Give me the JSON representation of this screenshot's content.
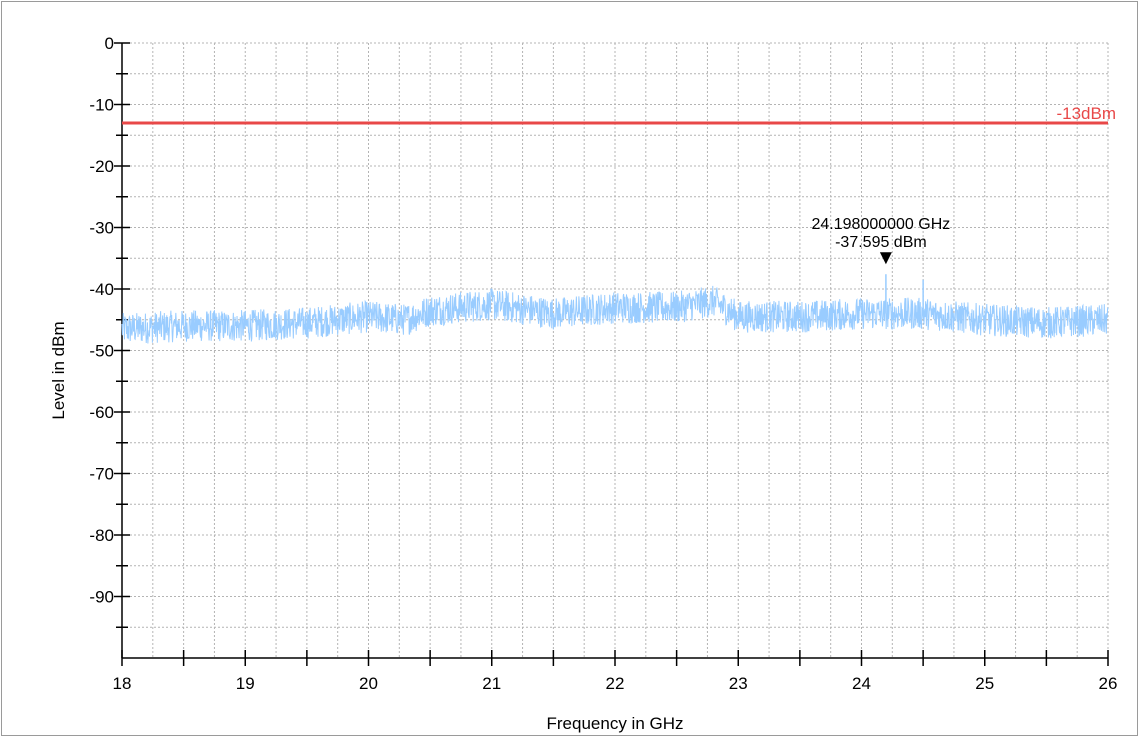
{
  "chart_data": {
    "type": "line",
    "xlabel": "Frequency in GHz",
    "ylabel": "Level in dBm",
    "xlim": [
      18,
      26
    ],
    "ylim": [
      -100,
      0
    ],
    "x_ticks": [
      18,
      19,
      20,
      21,
      22,
      23,
      24,
      25,
      26
    ],
    "y_ticks": [
      0,
      -10,
      -20,
      -30,
      -40,
      -50,
      -60,
      -70,
      -80,
      -90
    ],
    "grid": true,
    "series": [
      {
        "color": "#99ccff",
        "x": [
          18.0,
          18.5,
          19.0,
          19.5,
          20.0,
          20.3,
          20.5,
          21.0,
          21.5,
          22.0,
          22.5,
          22.8,
          23.0,
          23.5,
          24.0,
          24.5,
          25.0,
          25.5,
          26.0
        ],
        "y": [
          -46.5,
          -46.0,
          -46.0,
          -45.5,
          -44.5,
          -45.0,
          -43.5,
          -42.5,
          -44.0,
          -43.0,
          -43.0,
          -42.0,
          -44.5,
          -44.5,
          -44.0,
          -44.0,
          -45.0,
          -45.5,
          -45.0
        ]
      }
    ],
    "limit_line": {
      "label": "-13dBm",
      "value": -13,
      "color": "#e84848"
    },
    "marker": {
      "x": 24.198,
      "y": -37.595,
      "freq_label": "24.198000000 GHz",
      "level_label": "-37.595 dBm"
    }
  }
}
